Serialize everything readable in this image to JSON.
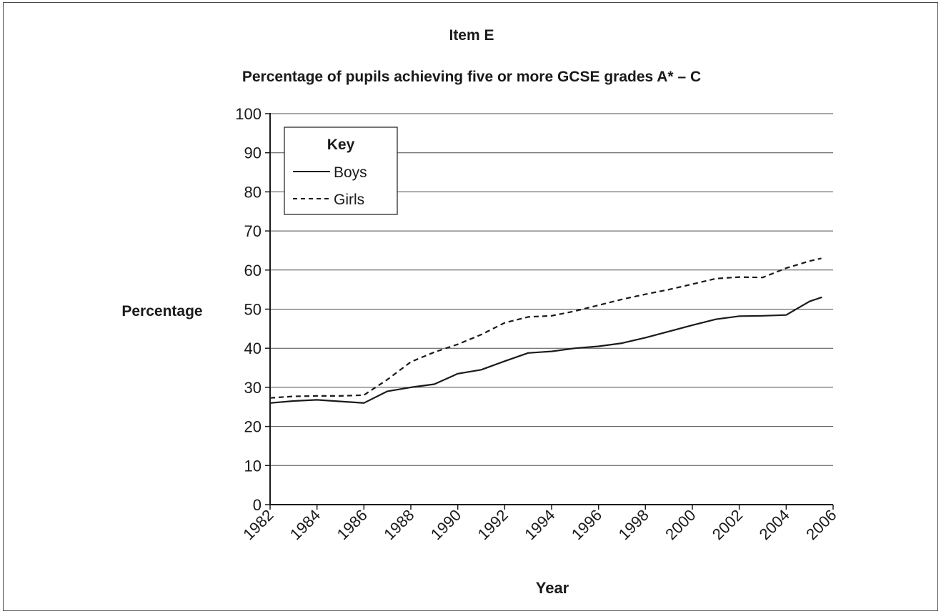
{
  "chart_data": {
    "type": "line",
    "item_label": "Item E",
    "title": "Percentage of pupils achieving five or more GCSE grades A* – C",
    "xlabel": "Year",
    "ylabel": "Percentage",
    "xlim": [
      1982,
      2006
    ],
    "ylim": [
      0,
      100
    ],
    "yticks": [
      0,
      10,
      20,
      30,
      40,
      50,
      60,
      70,
      80,
      90,
      100
    ],
    "xticks": [
      "1982",
      "1984",
      "1986",
      "1988",
      "1990",
      "1992",
      "1994",
      "1996",
      "1998",
      "2000",
      "2002",
      "2004",
      "2006"
    ],
    "grid": "horizontal",
    "legend": {
      "title": "Key",
      "position": "top-left"
    },
    "series": [
      {
        "name": "Boys",
        "style": "solid",
        "x": [
          1982,
          1983,
          1984,
          1985,
          1986,
          1987,
          1988,
          1989,
          1990,
          1991,
          1992,
          1993,
          1994,
          1995,
          1996,
          1997,
          1998,
          1999,
          2000,
          2001,
          2002,
          2003,
          2004,
          2005,
          2005.5
        ],
        "y": [
          26,
          26.5,
          26.8,
          26.4,
          26,
          29,
          30,
          30.8,
          33.5,
          34.5,
          36.7,
          38.8,
          39.2,
          40,
          40.5,
          41.3,
          42.7,
          44.3,
          45.9,
          47.4,
          48.2,
          48.3,
          48.5,
          52,
          53
        ]
      },
      {
        "name": "Girls",
        "style": "dashed",
        "x": [
          1982,
          1983,
          1984,
          1985,
          1986,
          1987,
          1988,
          1989,
          1990,
          1991,
          1992,
          1993,
          1994,
          1995,
          1996,
          1997,
          1998,
          1999,
          2000,
          2001,
          2002,
          2003,
          2004,
          2005,
          2005.5
        ],
        "y": [
          27.3,
          27.7,
          27.8,
          27.8,
          28,
          32,
          36.5,
          39,
          41,
          43.5,
          46.5,
          48,
          48.3,
          49.5,
          51,
          52.5,
          53.8,
          55,
          56.4,
          57.8,
          58.2,
          58.1,
          60.5,
          62.3,
          63
        ]
      }
    ]
  },
  "colors": {
    "line": "#1a1a1a",
    "grid": "#4d4d4d",
    "frame": "#4a4a4a"
  }
}
